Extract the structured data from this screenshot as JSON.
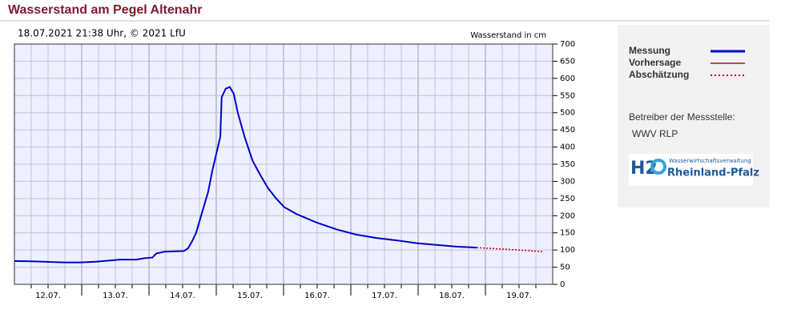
{
  "chart_data": {
    "type": "line",
    "title": "Wasserstand am Pegel Altenahr",
    "subtitle": "18.07.2021 21:38 Uhr, © 2021 LfU",
    "y_label": "Wasserstand in cm",
    "xlim": [
      0,
      8
    ],
    "xticks": [
      {
        "value": 0.5,
        "label": "12.07."
      },
      {
        "value": 1.5,
        "label": "13.07."
      },
      {
        "value": 2.5,
        "label": "14.07."
      },
      {
        "value": 3.5,
        "label": "15.07."
      },
      {
        "value": 4.5,
        "label": "16.07."
      },
      {
        "value": 5.5,
        "label": "17.07."
      },
      {
        "value": 6.5,
        "label": "18.07."
      },
      {
        "value": 7.5,
        "label": "19.07."
      }
    ],
    "x_minor_step": 0.25,
    "ylim": [
      0,
      700
    ],
    "yticks": [
      0,
      50,
      100,
      150,
      200,
      250,
      300,
      350,
      400,
      450,
      500,
      550,
      600,
      650,
      700
    ],
    "grid": true,
    "series": [
      {
        "name": "Messung",
        "color": "#0000cc",
        "dash": "solid",
        "x": [
          0,
          0.26,
          0.74,
          0.98,
          1.21,
          1.57,
          1.81,
          1.93,
          2.05,
          2.11,
          2.23,
          2.52,
          2.58,
          2.64,
          2.7,
          2.76,
          2.82,
          2.88,
          2.94,
          3.0,
          3.06,
          3.08,
          3.14,
          3.2,
          3.26,
          3.32,
          3.42,
          3.54,
          3.65,
          3.77,
          3.89,
          4.01,
          4.19,
          4.49,
          4.79,
          5.08,
          5.38,
          5.68,
          5.98,
          6.27,
          6.57,
          6.87
        ],
        "values": [
          68,
          67,
          64,
          64,
          66,
          72,
          72,
          76,
          78,
          90,
          95,
          97,
          105,
          125,
          150,
          190,
          230,
          270,
          330,
          380,
          430,
          545,
          570,
          575,
          555,
          500,
          430,
          360,
          320,
          280,
          250,
          225,
          205,
          180,
          160,
          145,
          135,
          128,
          120,
          115,
          110,
          107
        ]
      },
      {
        "name": "Vorhersage",
        "color": "#b0102a",
        "dash": "solid",
        "x": [],
        "values": []
      },
      {
        "name": "Abschätzung",
        "color": "#cc0000",
        "dash": "dotted",
        "x": [
          6.87,
          7.5,
          7.86
        ],
        "values": [
          107,
          100,
          95
        ]
      }
    ],
    "operator_label": "Betreiber der Messstelle:",
    "operator": "WWV RLP",
    "logo_mark": "H2",
    "logo_small": "Wasserwirtschaftsverwaltung",
    "logo_big": "Rheinland-Pfalz"
  }
}
